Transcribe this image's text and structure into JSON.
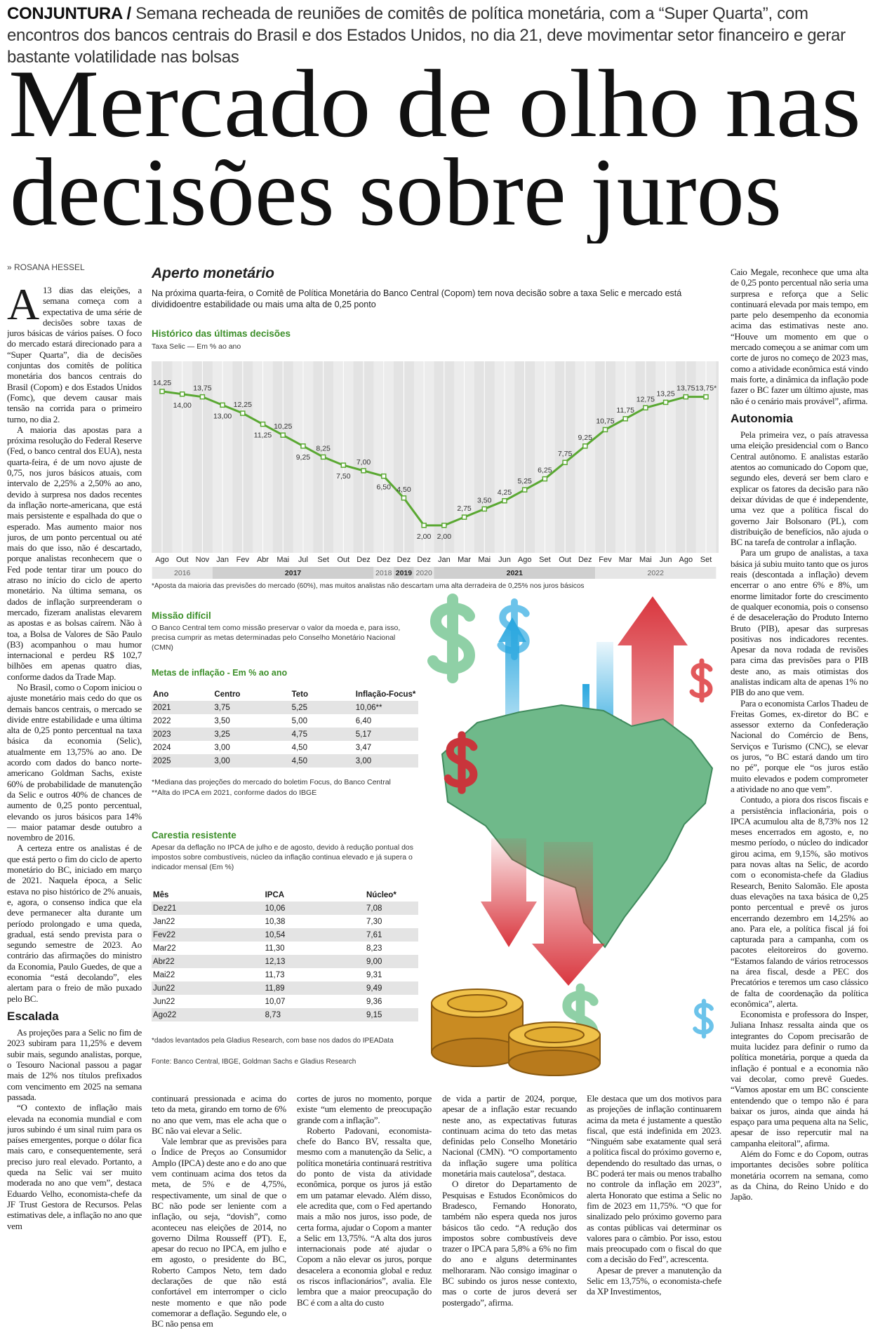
{
  "header": {
    "section": "CONJUNTURA /",
    "deck": "Semana recheada de reuniões de comitês de política monetária, com a “Super Quarta”, com encontros dos bancos centrais do Brasil e dos Estados Unidos, no dia 21, deve movimentar setor financeiro e gerar bastante volatilidade nas bolsas"
  },
  "headline": [
    "Mercado de olho nas",
    "decisões sobre juros"
  ],
  "byline": "» ROSANA HESSEL",
  "left_column": {
    "drop_cap": "A",
    "paragraphs": [
      "13 dias das eleições, a semana começa com a expectativa de uma série de decisões sobre taxas de juros básicas de vários países. O foco do mercado estará direcionado para a “Super Quarta”, dia de decisões conjuntas dos comitês de política monetária dos bancos centrais do Brasil (Copom) e dos Estados Unidos (Fomc), que devem causar mais tensão na corrida para o primeiro turno, no dia 2.",
      "A maioria das apostas para a próxima resolução do Federal Reserve (Fed, o banco central dos EUA), nesta quarta-feira, é de um novo ajuste de 0,75, nos juros básicos atuais, com intervalo de 2,25% a 2,50% ao ano, devido à surpresa nos dados recentes da inflação norte-americana, que está mais persistente e espalhada do que o esperado. Mas aumento maior nos juros, de um ponto percentual ou até mais do que isso, não é descartado, porque analistas reconhecem que o Fed pode tentar tirar um pouco do atraso no início do ciclo de aperto monetário. Na última semana, os dados de inflação surpreenderam o mercado, fizeram analistas elevarem as apostas e as bolsas caírem. Não à toa, a Bolsa de Valores de São Paulo (B3) acompanhou o mau humor internacional e perdeu R$ 102,7 bilhões em apenas quatro dias, conforme dados da Trade Map.",
      "No Brasil, como o Copom iniciou o ajuste monetário mais cedo do que os demais bancos centrais, o mercado se divide entre estabilidade e uma última alta de 0,25 ponto percentual na taxa básica da economia (Selic), atualmente em 13,75% ao ano. De acordo com dados do banco norte-americano Goldman Sachs, existe 60% de probabilidade de manutenção da Selic e outros 40% de chances de aumento de 0,25 ponto percentual, elevando os juros básicos para 14% — maior patamar desde outubro a novembro de 2016.",
      "A certeza entre os analistas é de que está perto o fim do ciclo de aperto monetário do BC, iniciado em março de 2021. Naquela época, a Selic estava no piso histórico de 2% anuais, e, agora, o consenso indica que ela deve permanecer alta durante um período prolongado e uma queda, gradual, está sendo prevista para o segundo semestre de 2023. Ao contrário das afirmações do ministro da Economia, Paulo Guedes, de que a economia “está decolando”, eles alertam para o freio de mão puxado pelo BC."
    ],
    "heading": "Escalada",
    "paragraphs2": [
      "As projeções para a Selic no fim de 2023 subiram para 11,25% e devem subir mais, segundo analistas, porque, o Tesouro Nacional passou a pagar mais de 12% nos títulos prefixados com vencimento em 2025 na semana passada.",
      "“O contexto de inflação mais elevada na economia mundial e com juros subindo é um sinal ruim para os países emergentes, porque o dólar fica mais caro, e consequentemente, será preciso juro real elevado. Portanto, a queda na Selic vai ser muito moderada no ano que vem”, destaca Eduardo Velho, economista-chefe da JF Trust Gestora de Recursos. Pelas estimativas dele, a inflação no ano que vem"
    ]
  },
  "bottom_columns": [
    [
      "continuará pressionada e acima do teto da meta, girando em torno de 6% no ano que vem, mas ele acha que o BC não vai elevar a Selic.",
      "Vale lembrar que as previsões para o Índice de Preços ao Consumidor Amplo (IPCA) deste ano e do ano que vem continuam acima dos tetos da meta, de 5% e de 4,75%, respectivamente, um sinal de que o BC não pode ser leniente com a inflação, ou seja, “dovish”, como aconteceu nas eleições de 2014, no governo Dilma Rousseff (PT). E, apesar do recuo no IPCA, em julho e em agosto, o presidente do BC, Roberto Campos Neto, tem dado declarações de que não está confortável em interromper o ciclo neste momento e que não pode comemorar a deflação. Segundo ele, o BC não pensa em"
    ],
    [
      "cortes de juros no momento, porque existe “um elemento de preocupação grande com a inflação”.",
      "Roberto Padovani, economista-chefe do Banco BV, ressalta que, mesmo com a manutenção da Selic, a política monetária continuará restritiva do ponto de vista da atividade econômica, porque os juros já estão em um patamar elevado. Além disso, ele acredita que, com o Fed apertando mais a mão nos juros, isso pode, de certa forma, ajudar o Copom a manter a Selic em 13,75%. “A alta dos juros internacionais pode até ajudar o Copom a não elevar os juros, porque desacelera a economia global e reduz os riscos inflacionários”, avalia. Ele lembra que a maior preocupação do BC é com a alta do custo"
    ],
    [
      "de vida a partir de 2024, porque, apesar de a inflação estar recuando neste ano, as expectativas futuras continuam acima do teto das metas definidas pelo Conselho Monetário Nacional (CMN). “O comportamento da inflação sugere uma política monetária mais cautelosa”, destaca.",
      "O diretor do Departamento de Pesquisas e Estudos Econômicos do Bradesco, Fernando Honorato, também não espera queda nos juros básicos tão cedo. “A redução dos impostos sobre combustíveis deve trazer o IPCA para 5,8% a 6% no fim do ano e alguns determinantes melhoraram. Não consigo imaginar o BC subindo os juros nesse contexto, mas o corte de juros deverá ser postergado”, afirma."
    ],
    [
      "Ele destaca que um dos motivos para as projeções de inflação continuarem acima da meta é justamente a questão fiscal, que está indefinida em 2023. “Ninguém sabe exatamente qual será a política fiscal do próximo governo e, dependendo do resultado das urnas, o BC poderá ter mais ou menos trabalho no controle da inflação em 2023”, alerta Honorato que estima a Selic no fim de 2023 em 11,75%. “O que for sinalizado pelo próximo governo para as contas públicas vai determinar os valores para o câmbio. Por isso, estou mais preocupado com o fiscal do que com a decisão do Fed”, acrescenta.",
      "Apesar de prever a manutenção da Selic em 13,75%, o economista-chefe da XP Investimentos,"
    ]
  ],
  "right_column": {
    "paragraphs": [
      "Caio Megale, reconhece que uma alta de 0,25 ponto percentual não seria uma surpresa e reforça que a Selic continuará elevada por mais tempo, em parte pelo desempenho da economia acima das estimativas neste ano. “Houve um momento em que o mercado começou a se animar com um corte de juros no começo de 2023 mas, como a atividade econômica está vindo mais forte, a dinâmica da inflação pode fazer o BC fazer um último ajuste, mas não é o cenário mais provável”, afirma."
    ],
    "heading": "Autonomia",
    "paragraphs2": [
      "Pela primeira vez, o país atravessa uma eleição presidencial com o Banco Central autônomo. E analistas estarão atentos ao comunicado do Copom que, segundo eles, deverá ser bem claro e explicar os fatores da decisão para não deixar dúvidas de que é independente, uma vez que a política fiscal do governo Jair Bolsonaro (PL), com distribuição de benefícios, não ajuda o BC na tarefa de controlar a inflação.",
      "Para um grupo de analistas, a taxa básica já subiu muito tanto que os juros reais (descontada a inflação) devem encerrar o ano entre 6% e 8%, um enorme limitador forte do crescimento de qualquer economia, pois o consenso é de desaceleração do Produto Interno Bruto (PIB), apesar das surpresas positivas nos indicadores recentes. Apesar da nova rodada de revisões para cima das previsões para o PIB deste ano, as mais otimistas dos analistas indicam alta de apenas 1% no PIB do ano que vem.",
      "Para o economista Carlos Thadeu de Freitas Gomes, ex-diretor do BC e assessor externo da Confederação Nacional do Comércio de Bens, Serviços e Turismo (CNC), se elevar os juros, “o BC estará dando um tiro no pé”, porque ele “os juros estão muito elevados e podem comprometer a atividade no ano que vem”.",
      "Contudo, a piora dos riscos fiscais e a persistência inflacionária, pois o IPCA acumulou alta de 8,73% nos 12 meses encerrados em agosto, e, no mesmo período, o núcleo do indicador girou acima, em 9,15%, são motivos para novas altas na Selic, de acordo com o economista-chefe da Gladius Research, Benito Salomão. Ele aposta duas elevações na taxa básica de 0,25 ponto percentual e prevê os juros encerrando dezembro em 14,25% ao ano. Para ele, a política fiscal já foi capturada para a campanha, com os pacotes eleitoreiros do governo. “Estamos falando de vários retrocessos na área fiscal, desde a PEC dos Precatórios e teremos um caso clássico de falta de coordenação da política econômica”, alerta.",
      "Economista e professora do Insper, Juliana Inhasz ressalta ainda que os integrantes do Copom precisarão de muita lucidez para definir o rumo da política monetária, porque a queda da inflação é pontual e a economia não vai decolar, como prevê Guedes. “Vamos apostar em um BC consciente entendendo que o tempo não é para baixar os juros, ainda que ainda há espaço para uma pequena alta na Selic, apesar de isso repercutir mal na campanha eleitoral”, afirma.",
      "Além do Fomc e do Copom, outras importantes decisões sobre política monetária ocorrem na semana, como as da China, do Reino Unido e do Japão."
    ]
  },
  "infographic": {
    "title": "Aperto monetário",
    "intro": "Na próxima quarta-feira, o Comitê de Política Monetária do Banco Central (Copom) tem nova decisão sobre a taxa Selic e mercado está divididoentre estabilidade ou mais uma alta de 0,25 ponto",
    "mission_title": "Missão difícil",
    "mission_text": "O Banco Central tem como missão preservar o valor da moeda e, para isso, precisa cumprir as metas determinadas pelo Conselho Monetário Nacional (CMN)",
    "targets": {
      "title": "Metas de inflação - Em % ao ano",
      "header": [
        "Ano",
        "Centro",
        "Teto",
        "Inflação-Focus*"
      ],
      "rows": [
        [
          "2021",
          "3,75",
          "5,25",
          "10,06**"
        ],
        [
          "2022",
          "3,50",
          "5,00",
          "6,40"
        ],
        [
          "2023",
          "3,25",
          "4,75",
          "5,17"
        ],
        [
          "2024",
          "3,00",
          "4,50",
          "3,47"
        ],
        [
          "2025",
          "3,00",
          "4,50",
          "3,00"
        ]
      ],
      "notes": [
        "*Mediana das projeções do mercado do boletim Focus, do Banco Central",
        "**Alta do IPCA em 2021, conforme dados do IBGE"
      ]
    },
    "cost_title": "Carestia resistente",
    "cost_text": "Apesar da deflação no IPCA de julho e de agosto, devido à redução pontual dos impostos sobre combustíveis, núcleo da inflação continua elevado e já supera o indicador mensal (Em %)",
    "cost_table": {
      "header": [
        "Mês",
        "IPCA",
        "Núcleo*"
      ],
      "rows": [
        [
          "Dez21",
          "10,06",
          "7,08"
        ],
        [
          "Jan22",
          "10,38",
          "7,30"
        ],
        [
          "Fev22",
          "10,54",
          "7,61"
        ],
        [
          "Mar22",
          "11,30",
          "8,23"
        ],
        [
          "Abr22",
          "12,13",
          "9,00"
        ],
        [
          "Mai22",
          "11,73",
          "9,31"
        ],
        [
          "Jun22",
          "11,89",
          "9,49"
        ],
        [
          "Jun22",
          "10,07",
          "9,36"
        ],
        [
          "Ago22",
          "8,73",
          "9,15"
        ]
      ],
      "note": "*dados levantados pela Gladius Research, com base nos dados do IPEAData"
    },
    "source": "Fonte: Banco Central, IBGE, Goldman Sachs e Gladius Research"
  },
  "chart_data": {
    "type": "line",
    "title": "Histórico das últimas decisões",
    "subtitle": "Taxa Selic — Em % ao ano",
    "categories": [
      "Ago",
      "Out",
      "Nov",
      "Jan",
      "Fev",
      "Abr",
      "Mai",
      "Jul",
      "Set",
      "Out",
      "Dez",
      "Dez",
      "Dez",
      "Dez",
      "Jan",
      "Mar",
      "Mai",
      "Jun",
      "Ago",
      "Set",
      "Out",
      "Dez",
      "Fev",
      "Mar",
      "Mai",
      "Jun",
      "Ago",
      "Set"
    ],
    "years": [
      "2016",
      "2017",
      "2018",
      "2019",
      "2020",
      "2021",
      "2022"
    ],
    "values": [
      14.25,
      14.0,
      13.75,
      13.0,
      12.25,
      11.25,
      10.25,
      9.25,
      8.25,
      7.5,
      7.0,
      6.5,
      4.5,
      2.0,
      2.0,
      2.75,
      3.5,
      4.25,
      5.25,
      6.25,
      7.75,
      9.25,
      10.75,
      11.75,
      12.75,
      13.25,
      13.75,
      13.75
    ],
    "value_labels": [
      "14,25",
      "14,00",
      "13,75",
      "13,00",
      "12,25",
      "11,25",
      "10,25",
      "9,25",
      "8,25",
      "7,50",
      "7,00",
      "6,50",
      "4,50",
      "2,00",
      "2,00",
      "2,75",
      "3,50",
      "4,25",
      "5,25",
      "6,25",
      "7,75",
      "9,25",
      "10,75",
      "11,75",
      "12,75",
      "13,25",
      "13,75",
      "13,75*"
    ],
    "color": "#5aa832",
    "ylim": [
      0,
      17
    ],
    "note": "*Aposta da maioria das previsões do mercado (60%), mas muitos analistas não descartam uma alta derradeira de 0,25% nos juros básicos"
  }
}
